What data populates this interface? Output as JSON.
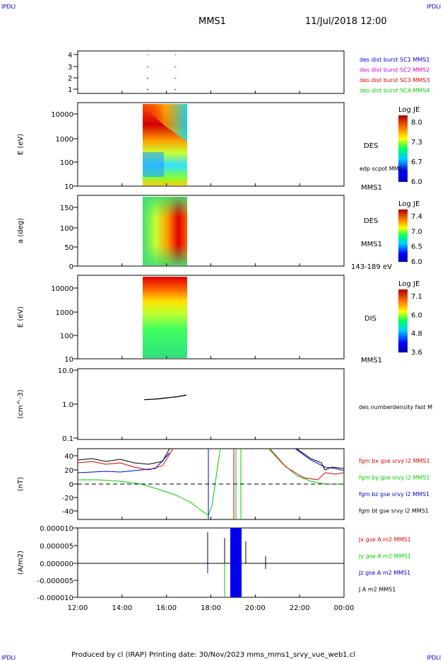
{
  "header": {
    "corner_left": "IPDLI",
    "corner_right": "IPDLI",
    "title": "MMS1",
    "date": "11/Jul/2018 12:00"
  },
  "footer": {
    "text": "Produced by cl (IRAP)   Printing date: 30/Nov/2023   mms_mms1_srvy_vue_web1.cl",
    "corner_left": "IPDLI",
    "corner_right": "IPDLI"
  },
  "time_axis": {
    "ticks": [
      "12:00",
      "14:00",
      "16:00",
      "18:00",
      "20:00",
      "22:00",
      "00:00"
    ],
    "start_hours": 12,
    "end_hours": 24
  },
  "colors": {
    "red": "#dd0000",
    "green": "#00cc00",
    "blue": "#0000cc",
    "magenta": "#cc00cc",
    "black": "#000000"
  },
  "chart_data": [
    {
      "type": "scatter",
      "name_id": "burst-availability",
      "yticks": [
        "4",
        "3",
        "2",
        "1"
      ],
      "legend": [
        {
          "label": "des dist burst SC1 MMS1",
          "color": "#0000cc"
        },
        {
          "label": "des dist burst SC2 MMS2",
          "color": "#cc00cc"
        },
        {
          "label": "des dist burst SC3 MMS3",
          "color": "#dd0000"
        },
        {
          "label": "des dist burst SC4 MMS4",
          "color": "#00cc00"
        }
      ],
      "marks_hours": [
        15.15,
        16.4
      ]
    },
    {
      "type": "heatmap",
      "name_id": "des-energy-spectrogram",
      "ylabel": "E (eV)",
      "yticks": [
        "10000",
        "1000",
        "100",
        "10"
      ],
      "side_label": "DES",
      "side_label_2": "edp scpot MMS1",
      "side_label_3": "MMS1",
      "colorbar": {
        "title": "Log JE",
        "ticks": [
          "8.0",
          "7.3",
          "6.7",
          "6.0"
        ]
      },
      "x_range_hours": [
        15.0,
        16.9
      ]
    },
    {
      "type": "heatmap",
      "name_id": "des-pitch-angle",
      "ylabel": "a (deg)",
      "yticks": [
        "150",
        "100",
        "50",
        "0"
      ],
      "side_label": "DES",
      "side_label_2": "MMS1",
      "side_label_3": "143-189 eV",
      "colorbar": {
        "title": "Log JE",
        "ticks": [
          "7.4",
          "7.0",
          "6.5",
          "6.0"
        ]
      },
      "x_range_hours": [
        15.0,
        16.9
      ]
    },
    {
      "type": "heatmap",
      "name_id": "dis-energy-spectrogram",
      "ylabel": "E (eV)",
      "yticks": [
        "10000",
        "1000",
        "100",
        "10"
      ],
      "side_label": "DIS",
      "side_label_2": "MMS1",
      "colorbar": {
        "title": "Log JE",
        "ticks": [
          "7.1",
          "6.0",
          "4.8",
          "3.6"
        ]
      },
      "x_range_hours": [
        15.0,
        16.9
      ]
    },
    {
      "type": "line",
      "name_id": "density",
      "ylabel": "(cm^-3)",
      "yticks": [
        "10.0",
        "1.0",
        "0.1"
      ],
      "legend": [
        {
          "label": "des numberdensity fast M",
          "color": "#000000"
        }
      ],
      "series": [
        {
          "x_hours": [
            15.0,
            15.3,
            15.6,
            15.9,
            16.2,
            16.5,
            16.9
          ],
          "values": [
            1.35,
            1.38,
            1.42,
            1.5,
            1.58,
            1.65,
            1.85
          ]
        }
      ]
    },
    {
      "type": "line",
      "name_id": "magnetic-field",
      "ylabel": "(nT)",
      "yticks": [
        "40",
        "20",
        "0",
        "-20",
        "-40"
      ],
      "ylim": [
        -50,
        50
      ],
      "legend": [
        {
          "label": "fgm bx gse srvy l2 MMS1",
          "color": "#dd0000"
        },
        {
          "label": "fgm by gse srvy l2 MMS1",
          "color": "#00cc00"
        },
        {
          "label": "fgm bz gse srvy l2 MMS1",
          "color": "#0000cc"
        },
        {
          "label": "fgm bt gse srvy l2 MMS1",
          "color": "#000000"
        }
      ]
    },
    {
      "type": "line",
      "name_id": "current-density",
      "ylabel": "(A/m2)",
      "yticks": [
        "0.000010",
        "0.000005",
        "0.000000",
        "-0.000005",
        "-0.000010"
      ],
      "ylim": [
        -1e-05,
        1e-05
      ],
      "legend": [
        {
          "label": "Jx gse A m2 MMS1",
          "color": "#dd0000"
        },
        {
          "label": "Jy gse A m2 MMS1",
          "color": "#00cc00"
        },
        {
          "label": "Jz gse A m2 MMS1",
          "color": "#0000cc"
        },
        {
          "label": "J A m2 MMS1",
          "color": "#000000"
        }
      ]
    }
  ]
}
